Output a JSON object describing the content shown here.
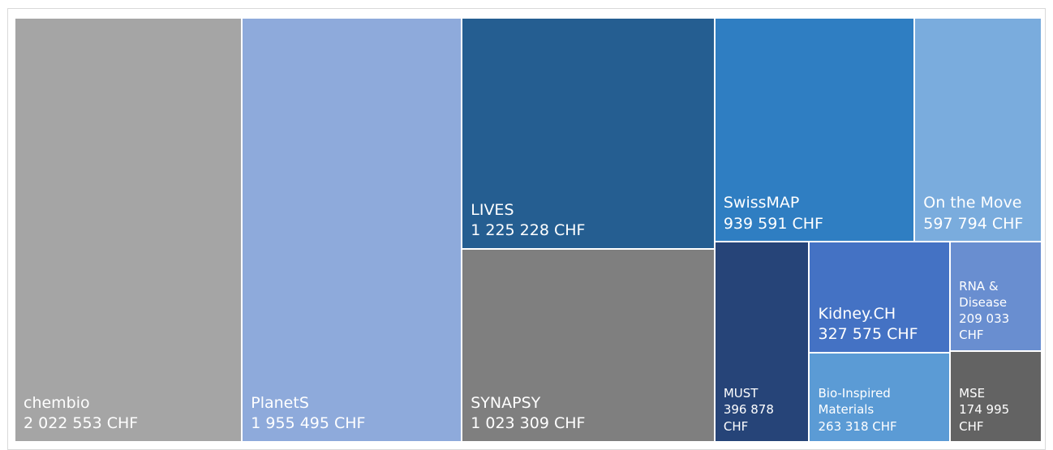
{
  "chart_data": {
    "type": "treemap",
    "categories": [
      "chembio",
      "PlanetS",
      "LIVES",
      "SYNAPSY",
      "SwissMAP",
      "On the Move",
      "MUST",
      "Kidney.CH",
      "Bio-Inspired Materials",
      "RNA & Disease",
      "MSE"
    ],
    "values": [
      2022553,
      1955495,
      1225228,
      1023309,
      939591,
      597794,
      396878,
      327575,
      263318,
      209033,
      174995
    ],
    "value_labels": [
      "2 022 553 CHF",
      "1 955 495 CHF",
      "1 225 228 CHF",
      "1 023 309 CHF",
      "939 591 CHF",
      "597 794 CHF",
      "396 878 CHF",
      "327 575 CHF",
      "263 318 CHF",
      "209 033 CHF",
      "174 995 CHF"
    ],
    "colors": [
      "#a5a5a5",
      "#8eaadb",
      "#255e91",
      "#7f7f7f",
      "#2f7ec2",
      "#7aacdd",
      "#264478",
      "#4472c4",
      "#5b9bd5",
      "#698ed0",
      "#636363"
    ]
  }
}
